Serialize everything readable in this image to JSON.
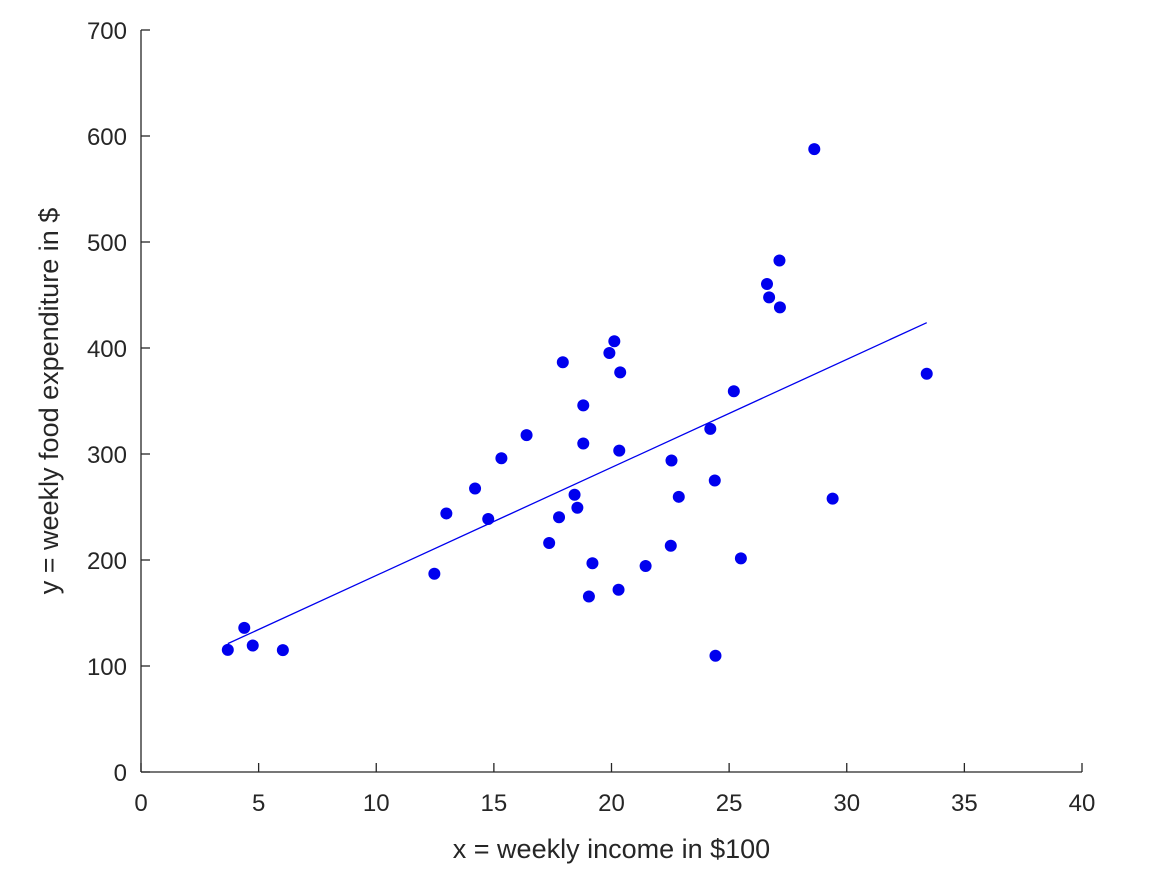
{
  "chart_data": {
    "type": "scatter",
    "title": "",
    "xlabel": "x = weekly income in $100",
    "ylabel": "y = weekly food expenditure in $",
    "xlim": [
      0,
      40
    ],
    "ylim": [
      0,
      700
    ],
    "xticks": [
      0,
      5,
      10,
      15,
      20,
      25,
      30,
      35,
      40
    ],
    "yticks": [
      0,
      100,
      200,
      300,
      400,
      500,
      600,
      700
    ],
    "grid": false,
    "colors": {
      "points": "#0000ee",
      "line": "#0000ee",
      "axis": "#262626"
    },
    "series": [
      {
        "kind": "scatter",
        "points": [
          [
            3.69,
            115.22
          ],
          [
            4.39,
            135.98
          ],
          [
            4.75,
            119.34
          ],
          [
            6.03,
            114.96
          ],
          [
            12.47,
            187.05
          ],
          [
            12.98,
            243.92
          ],
          [
            14.2,
            267.43
          ],
          [
            14.76,
            238.71
          ],
          [
            15.32,
            295.94
          ],
          [
            16.39,
            317.78
          ],
          [
            17.35,
            216.0
          ],
          [
            17.77,
            240.35
          ],
          [
            17.93,
            386.57
          ],
          [
            18.43,
            261.53
          ],
          [
            18.55,
            249.34
          ],
          [
            18.8,
            309.87
          ],
          [
            18.8,
            345.89
          ],
          [
            19.04,
            165.54
          ],
          [
            19.19,
            196.98
          ],
          [
            19.91,
            395.26
          ],
          [
            20.12,
            406.34
          ],
          [
            20.3,
            171.92
          ],
          [
            20.33,
            303.23
          ],
          [
            20.37,
            377.04
          ],
          [
            21.45,
            194.35
          ],
          [
            22.52,
            213.48
          ],
          [
            22.55,
            293.87
          ],
          [
            22.86,
            259.61
          ],
          [
            24.2,
            323.71
          ],
          [
            24.39,
            275.02
          ],
          [
            24.42,
            109.71
          ],
          [
            25.2,
            359.19
          ],
          [
            25.5,
            201.51
          ],
          [
            26.61,
            460.36
          ],
          [
            26.7,
            447.76
          ],
          [
            27.14,
            482.55
          ],
          [
            27.16,
            438.29
          ],
          [
            28.62,
            587.66
          ],
          [
            29.4,
            257.95
          ],
          [
            33.4,
            375.73
          ]
        ]
      },
      {
        "kind": "line",
        "points": [
          [
            3.69,
            121.09
          ],
          [
            33.4,
            423.87
          ]
        ]
      }
    ]
  }
}
